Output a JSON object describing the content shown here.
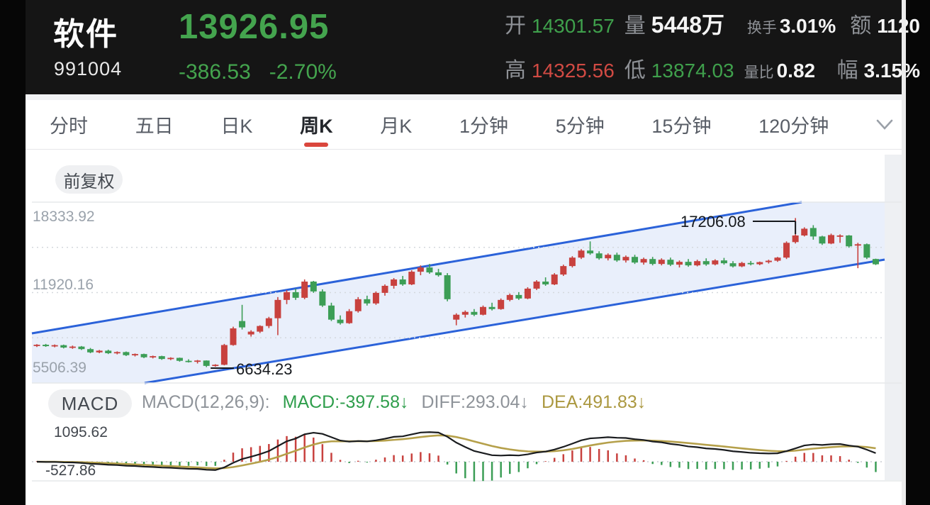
{
  "header": {
    "name": "软件",
    "code": "991004",
    "price": "13926.95",
    "change": "-386.53",
    "change_pct": "-2.70%",
    "stats": {
      "open_label": "开",
      "open": "14301.57",
      "volume_label": "量",
      "volume": "5448万",
      "turnover_label": "换手",
      "turnover": "3.01%",
      "amount_label": "额",
      "amount": "1120",
      "high_label": "高",
      "high": "14325.56",
      "low_label": "低",
      "low": "13874.03",
      "vol_ratio_label": "量比",
      "vol_ratio": "0.82",
      "amplitude_label": "幅",
      "amplitude": "3.15%"
    }
  },
  "tabs": {
    "items": [
      "分时",
      "五日",
      "日K",
      "周K",
      "月K",
      "1分钟",
      "5分钟",
      "15分钟",
      "120分钟"
    ],
    "active_index": 3
  },
  "adjust_button": "前复权",
  "macd_header": {
    "pill": "MACD",
    "params": "MACD(12,26,9):",
    "macd_value": "MACD:-397.58↓",
    "diff_value": "DIFF:293.04↓",
    "dea_value": "DEA:491.83↓"
  },
  "chart_data": {
    "type": "candlestick_with_macd",
    "period": "weekly",
    "y_axis_labels": [
      "18333.92",
      "11920.16",
      "5506.39"
    ],
    "y_range": [
      5506.39,
      18333.92
    ],
    "macd_axis_labels": [
      "1095.62",
      "-527.86"
    ],
    "macd_params": {
      "fast": 12,
      "slow": 26,
      "signal": 9
    },
    "annotations": {
      "low_label": "6634.23",
      "low_index": 19,
      "high_label": "17206.08",
      "high_index": 85
    },
    "colors": {
      "up": "#c8413e",
      "down": "#3c9e56",
      "channel": "#2b62d9",
      "channel_fill": "#e9effb",
      "diff_line": "#1a1c1f",
      "dea_line": "#b5a04a"
    },
    "candles": [
      [
        8150,
        8260,
        8060,
        8220
      ],
      [
        8220,
        8280,
        8070,
        8120
      ],
      [
        8120,
        8240,
        8040,
        8190
      ],
      [
        8190,
        8230,
        7960,
        8020
      ],
      [
        8020,
        8160,
        7930,
        8090
      ],
      [
        8090,
        8130,
        7850,
        7910
      ],
      [
        7910,
        7990,
        7620,
        7680
      ],
      [
        7680,
        7850,
        7620,
        7800
      ],
      [
        7800,
        7870,
        7560,
        7620
      ],
      [
        7620,
        7750,
        7540,
        7700
      ],
      [
        7700,
        7740,
        7420,
        7480
      ],
      [
        7480,
        7600,
        7390,
        7560
      ],
      [
        7560,
        7590,
        7270,
        7330
      ],
      [
        7330,
        7450,
        7250,
        7410
      ],
      [
        7410,
        7440,
        7150,
        7210
      ],
      [
        7210,
        7330,
        7130,
        7290
      ],
      [
        7290,
        7310,
        7020,
        7080
      ],
      [
        7080,
        7190,
        6960,
        7030
      ],
      [
        7030,
        7140,
        6890,
        7100
      ],
      [
        7100,
        7110,
        6634.23,
        6720
      ],
      [
        6720,
        6840,
        6660,
        6800
      ],
      [
        6800,
        8280,
        6760,
        8200
      ],
      [
        8200,
        9500,
        8150,
        9380
      ],
      [
        9900,
        11050,
        9300,
        9450
      ],
      [
        8950,
        9250,
        8800,
        9150
      ],
      [
        9150,
        9600,
        9050,
        9550
      ],
      [
        9550,
        10200,
        9400,
        10100
      ],
      [
        10100,
        11600,
        8900,
        11400
      ],
      [
        11400,
        12100,
        11100,
        11950
      ],
      [
        11950,
        12200,
        11400,
        11550
      ],
      [
        11550,
        12850,
        11450,
        12700
      ],
      [
        12700,
        12750,
        11900,
        12000
      ],
      [
        12000,
        12150,
        10900,
        11000
      ],
      [
        11000,
        11200,
        9900,
        10000
      ],
      [
        10000,
        10300,
        9650,
        9750
      ],
      [
        9750,
        10750,
        9700,
        10600
      ],
      [
        10600,
        11600,
        10500,
        11450
      ],
      [
        11450,
        11700,
        11000,
        11150
      ],
      [
        11150,
        12000,
        11050,
        11900
      ],
      [
        11900,
        12500,
        11700,
        12400
      ],
      [
        12400,
        12950,
        12200,
        12850
      ],
      [
        12850,
        13100,
        12400,
        12500
      ],
      [
        12500,
        13500,
        12450,
        13400
      ],
      [
        13400,
        13850,
        13150,
        13700
      ],
      [
        13700,
        13950,
        13250,
        13350
      ],
      [
        13350,
        13600,
        13050,
        13150
      ],
      [
        13150,
        13300,
        11300,
        11450
      ],
      [
        10000,
        10450,
        9600,
        10350
      ],
      [
        10350,
        10650,
        10150,
        10550
      ],
      [
        10550,
        10750,
        10250,
        10350
      ],
      [
        10350,
        11000,
        10300,
        10900
      ],
      [
        10900,
        11200,
        10650,
        10750
      ],
      [
        10750,
        11500,
        10700,
        11400
      ],
      [
        11400,
        11850,
        11300,
        11750
      ],
      [
        11750,
        11950,
        11400,
        11500
      ],
      [
        11500,
        12300,
        11450,
        12200
      ],
      [
        12200,
        12800,
        12100,
        12700
      ],
      [
        12700,
        13000,
        12400,
        12500
      ],
      [
        12500,
        13300,
        12450,
        13200
      ],
      [
        13200,
        13900,
        13100,
        13800
      ],
      [
        13800,
        14500,
        13700,
        14400
      ],
      [
        14400,
        15000,
        14300,
        14900
      ],
      [
        14900,
        15550,
        14600,
        14700
      ],
      [
        14700,
        14850,
        14250,
        14350
      ],
      [
        14350,
        14700,
        14200,
        14600
      ],
      [
        14600,
        14750,
        14100,
        14200
      ],
      [
        14200,
        14550,
        14050,
        14450
      ],
      [
        14450,
        14600,
        13950,
        14050
      ],
      [
        14050,
        14400,
        13900,
        14300
      ],
      [
        14300,
        14450,
        13850,
        13950
      ],
      [
        13950,
        14350,
        13850,
        14250
      ],
      [
        14250,
        14400,
        13800,
        13900
      ],
      [
        13900,
        14200,
        13700,
        14100
      ],
      [
        14100,
        14300,
        13750,
        13850
      ],
      [
        13850,
        14250,
        13780,
        14150
      ],
      [
        14150,
        14350,
        13820,
        13920
      ],
      [
        13920,
        14280,
        13850,
        14200
      ],
      [
        14200,
        14380,
        13900,
        14000
      ],
      [
        14000,
        14150,
        13700,
        13780
      ],
      [
        13780,
        14100,
        13720,
        14020
      ],
      [
        14020,
        14160,
        13850,
        13930
      ],
      [
        13930,
        14120,
        13860,
        14080
      ],
      [
        14080,
        14250,
        13980,
        14180
      ],
      [
        14180,
        14450,
        14100,
        14400
      ],
      [
        14400,
        15550,
        14300,
        15450
      ],
      [
        15500,
        17206.08,
        15400,
        15970
      ],
      [
        15970,
        16550,
        15900,
        16450
      ],
      [
        16500,
        16700,
        15670,
        15900
      ],
      [
        15900,
        15950,
        15300,
        15400
      ],
      [
        15400,
        16100,
        15350,
        16000
      ],
      [
        15950,
        16050,
        15450,
        15970
      ],
      [
        15970,
        16000,
        15100,
        15200
      ],
      [
        15250,
        15450,
        13650,
        15350
      ],
      [
        15350,
        15400,
        14300,
        14400
      ],
      [
        14301.57,
        14325.56,
        13874.03,
        13926.95
      ]
    ]
  }
}
